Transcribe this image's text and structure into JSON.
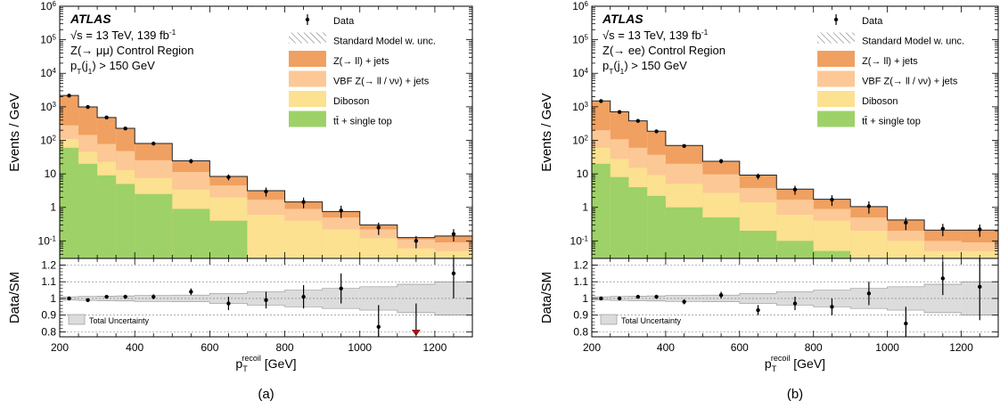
{
  "chart_data": [
    {
      "type": "histogram-stacked",
      "caption": "(a)",
      "experiment": "ATLAS",
      "lines": [
        "√s = 13 TeV, 139 fb⁻¹",
        "Z(→ μμ) Control Region",
        "pT(j1) > 150 GeV"
      ],
      "line_parts": [
        [
          {
            "t": "√s = 13 TeV, 139 fb"
          },
          {
            "t": "-1",
            "sup": true
          }
        ],
        [
          {
            "t": "Z(→ μμ) Control Region"
          }
        ],
        [
          {
            "t": "p"
          },
          {
            "t": "T",
            "sub": true
          },
          {
            "t": "(j"
          },
          {
            "t": "1",
            "sub": true
          },
          {
            "t": ") > 150 GeV"
          }
        ]
      ],
      "ylabel": "Events / GeV",
      "ratio_ylabel": "Data/SM",
      "xlabel": "p_T^recoil [GeV]",
      "xlabel_parts": {
        "main": "p",
        "sub": "T",
        "sup": "recoil",
        "rest": " [GeV]"
      },
      "xlim": [
        200,
        1300
      ],
      "xticks": [
        200,
        400,
        600,
        800,
        1000,
        1200
      ],
      "ylog": true,
      "ylim": [
        0.03,
        1000000
      ],
      "yticks": [
        {
          "v": 0.1,
          "label": "10",
          "sup": "-1"
        },
        {
          "v": 1,
          "label": "1"
        },
        {
          "v": 10,
          "label": "10"
        },
        {
          "v": 100,
          "label": "10",
          "sup": "2"
        },
        {
          "v": 1000,
          "label": "10",
          "sup": "3"
        },
        {
          "v": 10000,
          "label": "10",
          "sup": "4"
        },
        {
          "v": 100000,
          "label": "10",
          "sup": "5"
        },
        {
          "v": 1000000,
          "label": "10",
          "sup": "6"
        }
      ],
      "ratio_ylim": [
        0.77,
        1.24
      ],
      "ratio_yticks": [
        0.8,
        0.9,
        1,
        1.1,
        1.2
      ],
      "ratio_yticklabels": [
        "0.8",
        "0.9",
        "1",
        "1.1",
        "1.2"
      ],
      "bin_edges": [
        200,
        250,
        300,
        350,
        400,
        500,
        600,
        700,
        800,
        900,
        1000,
        1100,
        1200,
        1300
      ],
      "legend": [
        {
          "label": "Data",
          "kind": "data"
        },
        {
          "label": "Standard Model w. unc.",
          "kind": "hatch"
        },
        {
          "label": "Z(→ ll) + jets",
          "kind": "fill",
          "color": "#f0a060"
        },
        {
          "label": "VBF Z(→ ll / νν) + jets",
          "kind": "fill",
          "color": "#fcc896"
        },
        {
          "label": "Diboson",
          "kind": "fill",
          "color": "#fbe190"
        },
        {
          "label": "tt̄ + single top",
          "kind": "fill",
          "color": "#9ed168"
        }
      ],
      "stack": [
        {
          "name": "tt̄ + single top",
          "color": "#9ed168",
          "values": [
            60,
            20,
            9,
            5,
            2.5,
            0.9,
            0.4,
            0,
            0,
            0,
            0,
            0,
            0
          ]
        },
        {
          "name": "Diboson",
          "color": "#fbe190",
          "values": [
            50,
            25,
            14,
            8,
            5,
            2.5,
            1.6,
            0.6,
            0.4,
            0.22,
            0.12,
            0.06,
            0.05
          ]
        },
        {
          "name": "VBF Z(→ ll / νν) + jets",
          "color": "#fcc896",
          "values": [
            170,
            100,
            55,
            35,
            18,
            8,
            2.5,
            1.1,
            0.5,
            0.28,
            0.1,
            0.05,
            0.04
          ]
        },
        {
          "name": "Z(→ ll) + jets",
          "color": "#f0a060",
          "values": [
            1900,
            850,
            400,
            180,
            55,
            13,
            3.9,
            1.45,
            0.55,
            0.25,
            0.08,
            0.015,
            0.05
          ]
        }
      ],
      "total_sm": [
        2180,
        995,
        478,
        228,
        80.5,
        24.4,
        8.4,
        3.15,
        1.45,
        0.75,
        0.3,
        0.125,
        0.14
      ],
      "data": {
        "x": [
          225,
          275,
          325,
          375,
          450,
          550,
          650,
          750,
          850,
          950,
          1050,
          1150,
          1250
        ],
        "y": [
          2150,
          990,
          480,
          225,
          80,
          24,
          8,
          3,
          1.45,
          0.8,
          0.25,
          0.1,
          0.16
        ],
        "yerr": [
          0.05,
          0.04,
          0.05,
          0.08,
          0.1,
          0.15,
          0.2,
          0.3,
          0.35,
          0.4,
          0.4,
          0.4,
          0.4
        ]
      },
      "ratio": {
        "x": [
          225,
          275,
          325,
          375,
          450,
          550,
          650,
          750,
          850,
          950,
          1050,
          1150,
          1250
        ],
        "y": [
          1.0,
          0.99,
          1.01,
          1.01,
          1.01,
          1.04,
          0.97,
          0.99,
          1.01,
          1.06,
          0.83,
          0.7,
          1.15
        ],
        "yerr": [
          0.005,
          0.007,
          0.01,
          0.012,
          0.015,
          0.02,
          0.04,
          0.05,
          0.07,
          0.09,
          0.13,
          0.15,
          0.15
        ],
        "band": [
          0.01,
          0.012,
          0.013,
          0.015,
          0.018,
          0.02,
          0.03,
          0.04,
          0.05,
          0.06,
          0.07,
          0.085,
          0.1
        ],
        "off_scale_down": [
          1150
        ]
      },
      "ratio_legend": "Total Uncertainty"
    },
    {
      "type": "histogram-stacked",
      "caption": "(b)",
      "experiment": "ATLAS",
      "lines": [
        "√s = 13 TeV, 139 fb⁻¹",
        "Z(→ ee) Control Region",
        "pT(j1) > 150 GeV"
      ],
      "line_parts": [
        [
          {
            "t": "√s = 13 TeV, 139 fb"
          },
          {
            "t": "-1",
            "sup": true
          }
        ],
        [
          {
            "t": "Z(→ ee) Control Region"
          }
        ],
        [
          {
            "t": "p"
          },
          {
            "t": "T",
            "sub": true
          },
          {
            "t": "(j"
          },
          {
            "t": "1",
            "sub": true
          },
          {
            "t": ") > 150 GeV"
          }
        ]
      ],
      "ylabel": "Events / GeV",
      "ratio_ylabel": "Data/SM",
      "xlabel": "p_T^recoil [GeV]",
      "xlabel_parts": {
        "main": "p",
        "sub": "T",
        "sup": "recoil",
        "rest": " [GeV]"
      },
      "xlim": [
        200,
        1300
      ],
      "xticks": [
        200,
        400,
        600,
        800,
        1000,
        1200
      ],
      "ylog": true,
      "ylim": [
        0.03,
        1000000
      ],
      "yticks": [
        {
          "v": 0.1,
          "label": "10",
          "sup": "-1"
        },
        {
          "v": 1,
          "label": "1"
        },
        {
          "v": 10,
          "label": "10"
        },
        {
          "v": 100,
          "label": "10",
          "sup": "2"
        },
        {
          "v": 1000,
          "label": "10",
          "sup": "3"
        },
        {
          "v": 10000,
          "label": "10",
          "sup": "4"
        },
        {
          "v": 100000,
          "label": "10",
          "sup": "5"
        },
        {
          "v": 1000000,
          "label": "10",
          "sup": "6"
        }
      ],
      "ratio_ylim": [
        0.77,
        1.24
      ],
      "ratio_yticks": [
        0.8,
        0.9,
        1,
        1.1,
        1.2
      ],
      "ratio_yticklabels": [
        "0.8",
        "0.9",
        "1",
        "1.1",
        "1.2"
      ],
      "bin_edges": [
        200,
        250,
        300,
        350,
        400,
        500,
        600,
        700,
        800,
        900,
        1000,
        1100,
        1200,
        1300
      ],
      "legend": [
        {
          "label": "Data",
          "kind": "data"
        },
        {
          "label": "Standard Model w. unc.",
          "kind": "hatch"
        },
        {
          "label": "Z(→ ll) + jets",
          "kind": "fill",
          "color": "#f0a060"
        },
        {
          "label": "VBF Z(→ ll / νν) + jets",
          "kind": "fill",
          "color": "#fcc896"
        },
        {
          "label": "Diboson",
          "kind": "fill",
          "color": "#fbe190"
        },
        {
          "label": "tt̄ + single top",
          "kind": "fill",
          "color": "#9ed168"
        }
      ],
      "stack": [
        {
          "name": "tt̄ + single top",
          "color": "#9ed168",
          "values": [
            20,
            8,
            4,
            2.2,
            1,
            0.5,
            0.2,
            0.1,
            0.05,
            0,
            0,
            0,
            0
          ]
        },
        {
          "name": "Diboson",
          "color": "#fbe190",
          "values": [
            40,
            20,
            11,
            7,
            4,
            2.2,
            1.2,
            0.5,
            0.35,
            0.2,
            0.1,
            0.05,
            0.05
          ]
        },
        {
          "name": "VBF Z(→ ll / νν) + jets",
          "color": "#fcc896",
          "values": [
            140,
            80,
            45,
            28,
            15,
            7,
            2.4,
            1.1,
            0.5,
            0.3,
            0.1,
            0.05,
            0.04
          ]
        },
        {
          "name": "Z(→ ll) + jets",
          "color": "#f0a060",
          "values": [
            1300,
            600,
            320,
            150,
            50,
            14,
            5.4,
            1.8,
            0.85,
            0.55,
            0.22,
            0.11,
            0.12
          ]
        }
      ],
      "total_sm": [
        1500,
        708,
        380,
        187,
        70,
        23.7,
        9.2,
        3.5,
        1.75,
        1.05,
        0.42,
        0.21,
        0.21
      ],
      "data": {
        "x": [
          225,
          275,
          325,
          375,
          450,
          550,
          650,
          750,
          850,
          950,
          1050,
          1150,
          1250
        ],
        "y": [
          1480,
          700,
          380,
          185,
          68,
          24,
          8.5,
          3.4,
          1.7,
          1.08,
          0.35,
          0.23,
          0.22
        ],
        "yerr": [
          0.05,
          0.04,
          0.05,
          0.08,
          0.1,
          0.15,
          0.2,
          0.3,
          0.35,
          0.4,
          0.4,
          0.4,
          0.4
        ]
      },
      "ratio": {
        "x": [
          225,
          275,
          325,
          375,
          450,
          550,
          650,
          750,
          850,
          950,
          1050,
          1150,
          1250
        ],
        "y": [
          1.0,
          1.0,
          1.01,
          1.01,
          0.98,
          1.02,
          0.93,
          0.97,
          0.95,
          1.03,
          0.85,
          1.12,
          1.07
        ],
        "yerr": [
          0.006,
          0.008,
          0.01,
          0.012,
          0.015,
          0.02,
          0.03,
          0.04,
          0.05,
          0.07,
          0.1,
          0.1,
          0.2
        ],
        "band": [
          0.01,
          0.012,
          0.013,
          0.015,
          0.018,
          0.02,
          0.03,
          0.04,
          0.05,
          0.06,
          0.07,
          0.085,
          0.1
        ],
        "off_scale_down": []
      },
      "ratio_legend": "Total Uncertainty"
    }
  ]
}
